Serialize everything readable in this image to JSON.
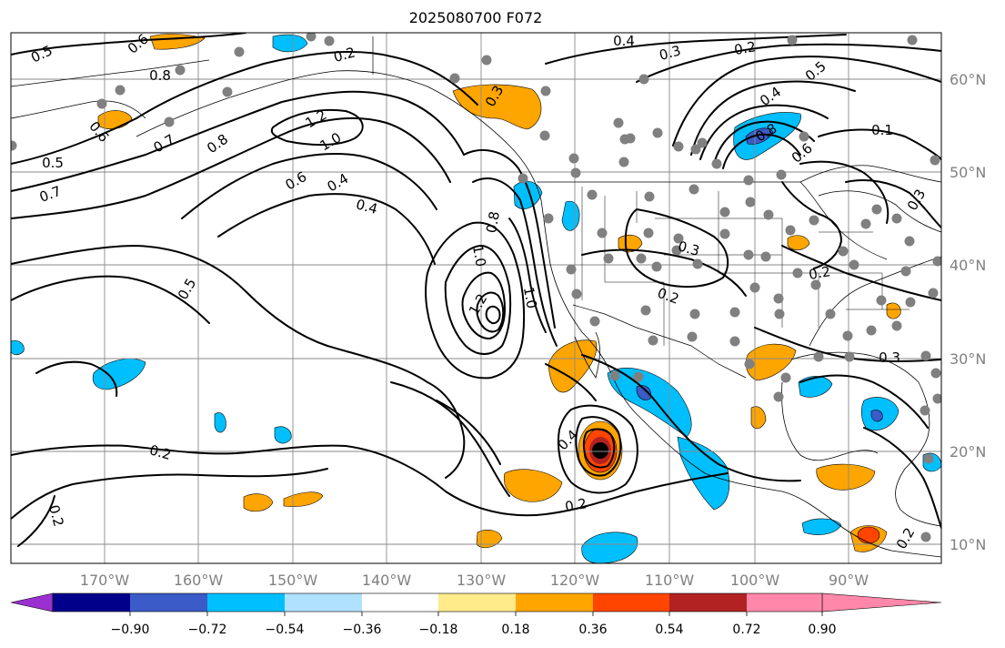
{
  "title": "2025080700 F072",
  "lon_labels": [
    "170°W",
    "160°W",
    "150°W",
    "140°W",
    "130°W",
    "120°W",
    "110°W",
    "100°W",
    "90°W"
  ],
  "lat_labels": [
    "60°N",
    "50°N",
    "40°N",
    "30°N",
    "20°N",
    "10°N"
  ],
  "colorbar": {
    "ticks": [
      "−0.90",
      "−0.72",
      "−0.54",
      "−0.36",
      "−0.18",
      "0.18",
      "0.36",
      "0.54",
      "0.72",
      "0.90"
    ],
    "colors": [
      "#9b30d0",
      "#00008b",
      "#3a5bc8",
      "#00bfff",
      "#b0e2ff",
      "#ffffff",
      "#ffeb8a",
      "#ffa500",
      "#ff4500",
      "#b22222",
      "#ff88aa"
    ]
  },
  "contour_labels": [
    "0.5",
    "0.6",
    "0.8",
    "0.2",
    "0.4",
    "0.3",
    "0.2",
    "0.5",
    "0.4",
    "0.8",
    "0.6",
    "0.1",
    "0.3",
    "1.2",
    "1.0",
    "0.8",
    "0.6",
    "0.4",
    "0.7",
    "0.5",
    "0.7",
    "0.6",
    "0.4",
    "0.8",
    "1.0",
    "1.2",
    "1.0",
    "0.3",
    "0.2",
    "0.2",
    "0.3",
    "0.5",
    "0.2",
    "0.2",
    "0.4",
    "0.2",
    "0.2",
    "0.3"
  ]
}
